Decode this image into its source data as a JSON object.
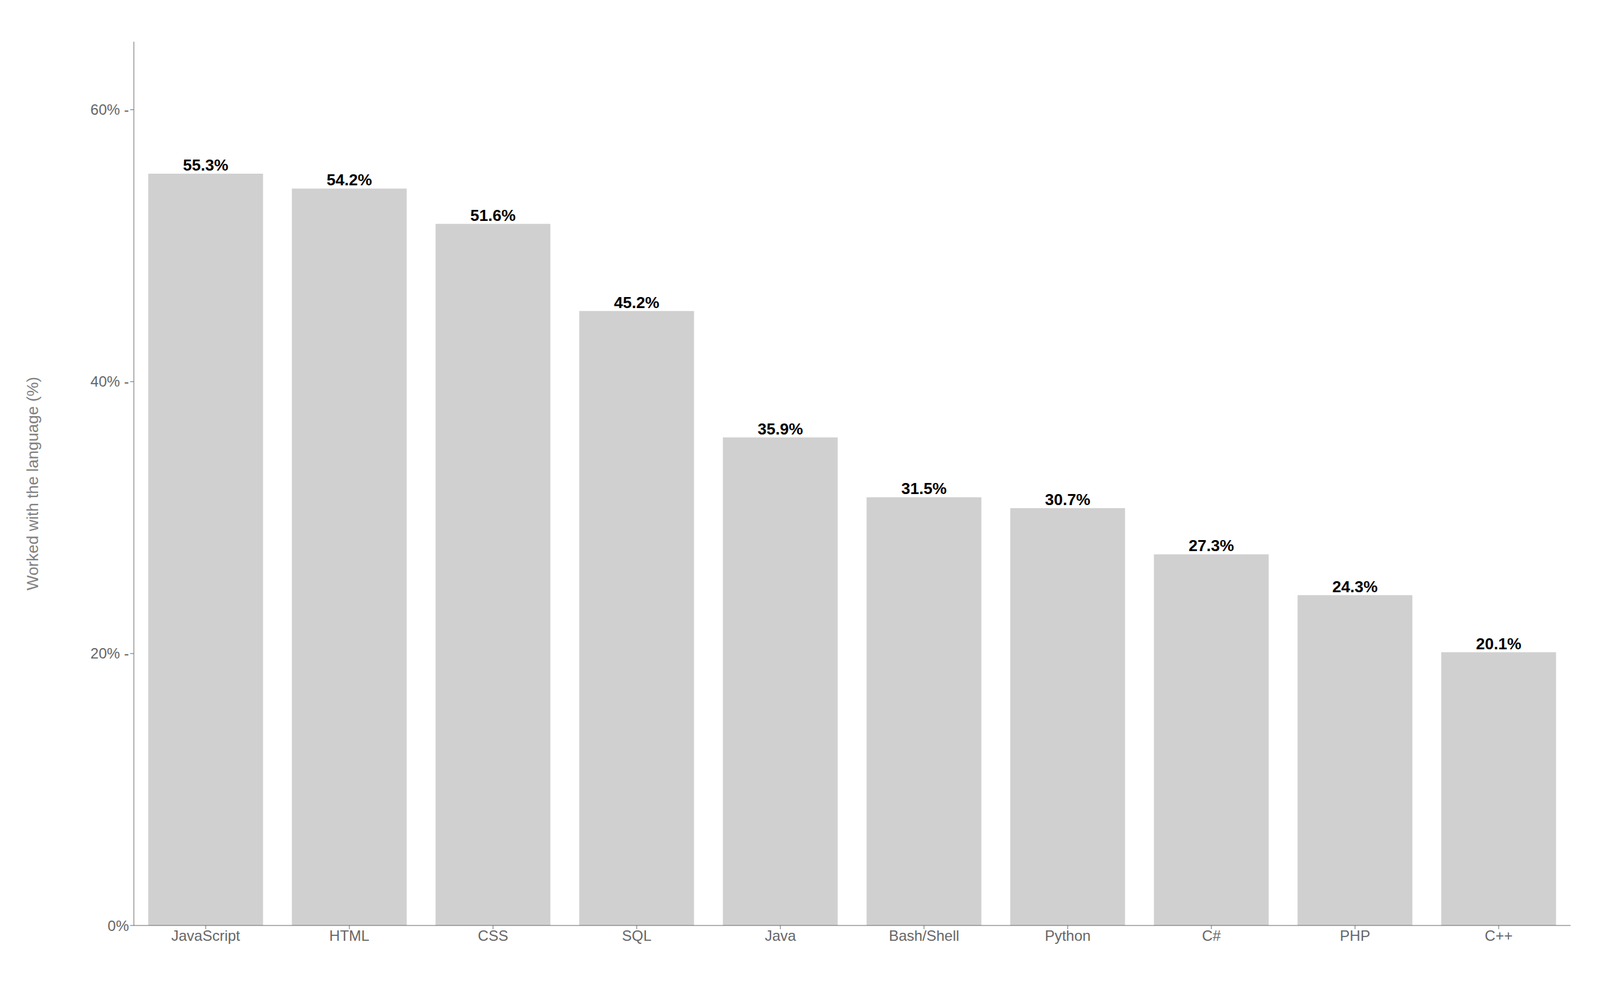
{
  "chart_data": {
    "type": "bar",
    "ylabel": "Worked with the language (%)",
    "categories": [
      "JavaScript",
      "HTML",
      "CSS",
      "SQL",
      "Java",
      "Bash/Shell",
      "Python",
      "C#",
      "PHP",
      "C++"
    ],
    "values": [
      55.3,
      54.2,
      51.6,
      45.2,
      35.9,
      31.5,
      30.7,
      27.3,
      24.3,
      20.1
    ],
    "value_labels": [
      "55.3%",
      "54.2%",
      "51.6%",
      "45.2%",
      "35.9%",
      "31.5%",
      "30.7%",
      "27.3%",
      "24.3%",
      "20.1%"
    ],
    "data_labels": true,
    "color": "#d0d0d0",
    "ylim": [
      0,
      65
    ],
    "yticks": [
      {
        "value": 0,
        "label": "0%"
      },
      {
        "value": 20,
        "label": "20% -"
      },
      {
        "value": 40,
        "label": "40% -"
      },
      {
        "value": 60,
        "label": "60% -"
      }
    ],
    "grid": false
  }
}
